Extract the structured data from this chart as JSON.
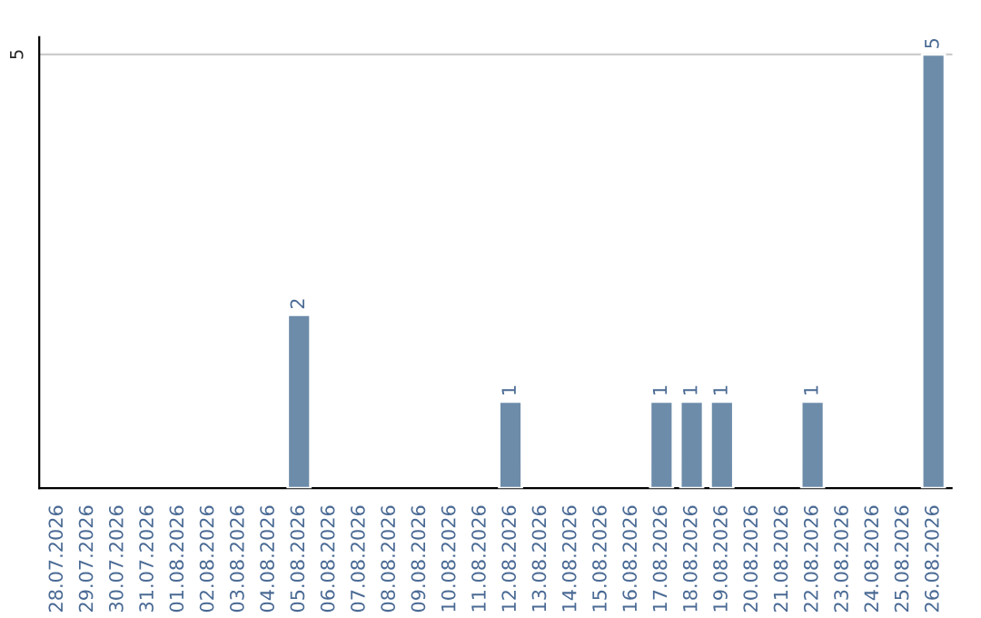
{
  "chart_data": {
    "type": "bar",
    "categories": [
      "28.07.2026",
      "29.07.2026",
      "30.07.2026",
      "31.07.2026",
      "01.08.2026",
      "02.08.2026",
      "03.08.2026",
      "04.08.2026",
      "05.08.2026",
      "06.08.2026",
      "07.08.2026",
      "08.08.2026",
      "09.08.2026",
      "10.08.2026",
      "11.08.2026",
      "12.08.2026",
      "13.08.2026",
      "14.08.2026",
      "15.08.2026",
      "16.08.2026",
      "17.08.2026",
      "18.08.2026",
      "19.08.2026",
      "20.08.2026",
      "21.08.2026",
      "22.08.2026",
      "23.08.2026",
      "24.08.2026",
      "25.08.2026",
      "26.08.2026"
    ],
    "values": [
      null,
      null,
      null,
      null,
      null,
      null,
      null,
      null,
      2,
      null,
      null,
      null,
      null,
      null,
      null,
      1,
      null,
      null,
      null,
      null,
      1,
      1,
      1,
      null,
      null,
      1,
      null,
      null,
      null,
      5
    ],
    "value_labels": [
      null,
      null,
      null,
      null,
      null,
      null,
      null,
      null,
      "2",
      null,
      null,
      null,
      null,
      null,
      null,
      "1",
      null,
      null,
      null,
      null,
      "1",
      "1",
      "1",
      null,
      null,
      "1",
      null,
      null,
      null,
      "5"
    ],
    "color": "#6d8caa",
    "ylim": [
      0,
      5.2
    ],
    "yticks": [
      5
    ],
    "grid": "y",
    "legend": false
  }
}
